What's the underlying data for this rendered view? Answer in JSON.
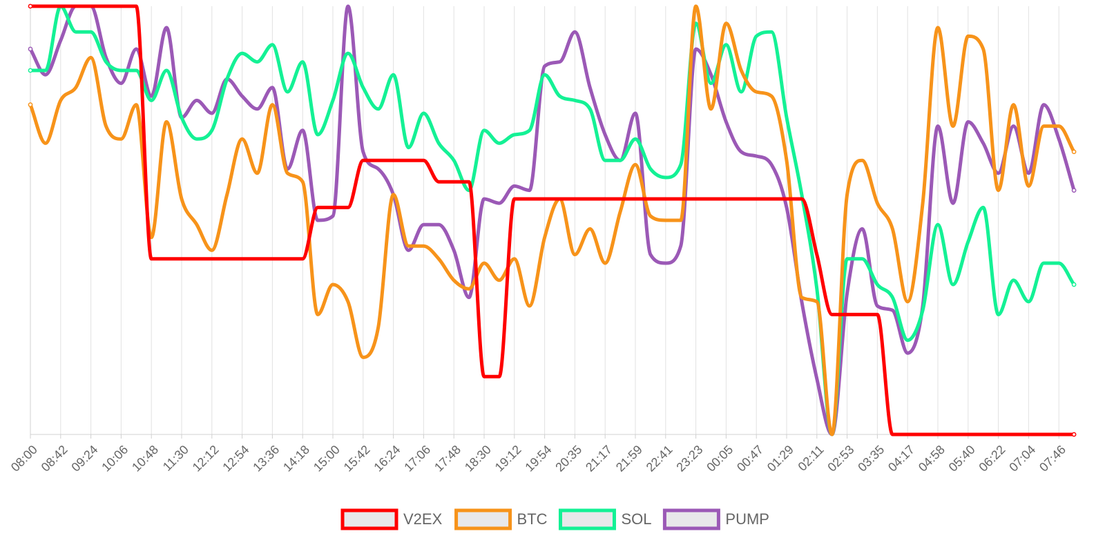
{
  "chart_data": {
    "type": "line",
    "title": "",
    "xlabel": "",
    "ylabel": "",
    "ylim": [
      0,
      100
    ],
    "grid": {
      "vertical": true,
      "horizontal": false
    },
    "legend_position": "bottom-center",
    "y_axis_visible": false,
    "x": [
      "08:00",
      "08:21",
      "08:42",
      "09:03",
      "09:24",
      "09:45",
      "10:06",
      "10:27",
      "10:48",
      "11:09",
      "11:30",
      "11:51",
      "12:12",
      "12:33",
      "12:54",
      "13:15",
      "13:36",
      "13:57",
      "14:18",
      "14:39",
      "15:00",
      "15:21",
      "15:42",
      "16:03",
      "16:24",
      "16:45",
      "17:06",
      "17:27",
      "17:48",
      "18:09",
      "18:30",
      "18:51",
      "19:12",
      "19:33",
      "19:54",
      "20:14",
      "20:35",
      "20:56",
      "21:17",
      "21:38",
      "21:59",
      "22:20",
      "22:41",
      "23:02",
      "23:23",
      "23:44",
      "00:05",
      "00:26",
      "00:47",
      "01:08",
      "01:29",
      "01:50",
      "02:11",
      "02:32",
      "02:53",
      "03:14",
      "03:35",
      "03:56",
      "04:17",
      "04:38",
      "04:58",
      "05:19",
      "05:40",
      "06:01",
      "06:22",
      "06:43",
      "07:04",
      "07:25",
      "07:46",
      "08:07"
    ],
    "tick_labels": [
      "08:00",
      "08:42",
      "09:24",
      "10:06",
      "10:48",
      "11:30",
      "12:12",
      "12:54",
      "13:36",
      "14:18",
      "15:00",
      "15:42",
      "16:24",
      "17:06",
      "17:48",
      "18:30",
      "19:12",
      "19:54",
      "20:35",
      "21:17",
      "21:59",
      "22:41",
      "23:23",
      "00:05",
      "00:47",
      "01:29",
      "02:11",
      "02:53",
      "03:35",
      "04:17",
      "04:58",
      "05:40",
      "06:22",
      "07:04",
      "07:46"
    ],
    "series": [
      {
        "name": "V2EX",
        "color": "#ff0000",
        "values": [
          100,
          100,
          100,
          100,
          100,
          100,
          100,
          100,
          41,
          41,
          41,
          41,
          41,
          41,
          41,
          41,
          41,
          41,
          41,
          53,
          53,
          53,
          64,
          64,
          64,
          64,
          64,
          59,
          59,
          59,
          13.5,
          13.5,
          55,
          55,
          55,
          55,
          55,
          55,
          55,
          55,
          55,
          55,
          55,
          55,
          55,
          55,
          55,
          55,
          55,
          55,
          55,
          55,
          42,
          28,
          28,
          28,
          28,
          0,
          0,
          0,
          0,
          0,
          0,
          0,
          0,
          0,
          0,
          0,
          0,
          0
        ]
      },
      {
        "name": "BTC",
        "color": "#f7931a",
        "values": [
          77,
          68,
          78,
          81,
          88,
          72,
          69,
          77,
          46,
          73,
          55,
          49,
          43,
          56,
          69,
          61,
          77,
          61,
          59,
          28,
          35,
          31,
          18,
          25,
          56,
          44,
          44,
          41,
          36,
          34,
          40,
          36,
          41,
          30,
          46,
          55,
          42,
          48,
          40,
          52,
          63,
          51,
          50,
          50,
          100,
          76,
          96,
          85,
          80,
          79,
          64,
          32,
          31,
          0,
          56,
          64,
          54,
          48,
          31,
          54,
          95,
          72,
          93,
          90,
          57,
          77,
          58,
          72,
          72,
          66
        ]
      },
      {
        "name": "SOL",
        "color": "#14f195",
        "values": [
          85,
          85,
          100,
          94,
          94,
          87,
          85,
          85,
          78,
          85,
          74,
          69,
          71,
          83,
          89,
          87,
          91,
          80,
          87,
          70,
          78,
          89,
          81,
          76,
          84,
          67,
          75,
          68,
          64,
          57,
          71,
          68,
          70,
          71,
          84,
          79,
          78,
          76,
          64,
          64,
          69,
          62,
          60,
          63,
          96,
          82,
          91,
          80,
          93,
          94,
          74,
          56,
          34,
          0,
          41,
          41,
          35,
          32,
          22,
          29,
          49,
          35,
          45,
          53,
          28,
          36,
          31,
          40,
          40,
          35
        ]
      },
      {
        "name": "PUMP",
        "color": "#9b59b6",
        "values": [
          90,
          84,
          92,
          100,
          100,
          88,
          82,
          90,
          79,
          95,
          74,
          78,
          75,
          83,
          79,
          76,
          81,
          62,
          71,
          50,
          51,
          100,
          66,
          62,
          56,
          43,
          49,
          49,
          43,
          32,
          55,
          54,
          58,
          57,
          86,
          87,
          94,
          81,
          70,
          64,
          75,
          42,
          40,
          44,
          90,
          84,
          73,
          66,
          65,
          63,
          53,
          31,
          13,
          0,
          33,
          48,
          30,
          29,
          19,
          30,
          72,
          54,
          73,
          68,
          61,
          72,
          61,
          77,
          69,
          57
        ]
      }
    ]
  }
}
